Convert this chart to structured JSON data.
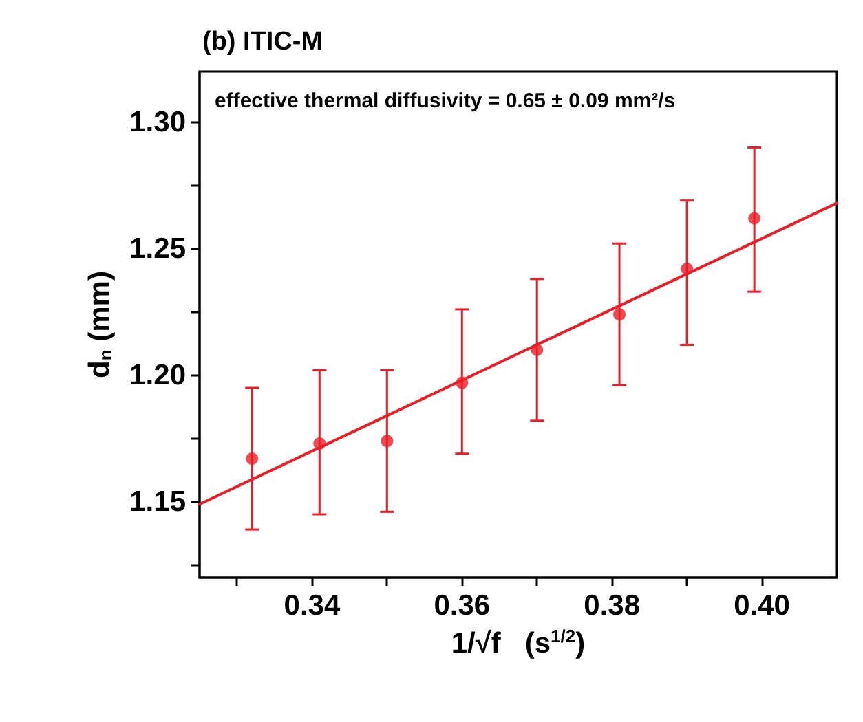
{
  "chart_data": {
    "type": "scatter",
    "title": "(b) ITIC-M",
    "xlabel": "1/√f   (s$^{1/2}$)",
    "ylabel": "d$_{n}$ (mm)",
    "annotations": [
      "effective thermal diffusivity = 0.65 ± 0.09 mm²/s"
    ],
    "xlim": [
      0.325,
      0.41
    ],
    "ylim": [
      1.12,
      1.32
    ],
    "xticks": [
      {
        "value": 0.33,
        "label": null
      },
      {
        "value": 0.34,
        "label": "0.34"
      },
      {
        "value": 0.35,
        "label": null
      },
      {
        "value": 0.36,
        "label": "0.36"
      },
      {
        "value": 0.37,
        "label": null
      },
      {
        "value": 0.38,
        "label": "0.38"
      },
      {
        "value": 0.39,
        "label": null
      },
      {
        "value": 0.4,
        "label": "0.40"
      }
    ],
    "yticks": [
      {
        "value": 1.125,
        "label": null
      },
      {
        "value": 1.15,
        "label": "1.15"
      },
      {
        "value": 1.175,
        "label": null
      },
      {
        "value": 1.2,
        "label": "1.20"
      },
      {
        "value": 1.225,
        "label": null
      },
      {
        "value": 1.25,
        "label": "1.25"
      },
      {
        "value": 1.275,
        "label": null
      },
      {
        "value": 1.3,
        "label": "1.30"
      }
    ],
    "grid": false,
    "series": [
      {
        "color": "#ee1c25",
        "marker": "circle",
        "x": [
          0.332,
          0.341,
          0.35,
          0.36,
          0.37,
          0.381,
          0.39,
          0.399
        ],
        "values": [
          1.167,
          1.173,
          1.174,
          1.197,
          1.21,
          1.224,
          1.242,
          1.262
        ],
        "errors": [
          [
            1.139,
            1.195
          ],
          [
            1.145,
            1.202
          ],
          [
            1.146,
            1.202
          ],
          [
            1.169,
            1.226
          ],
          [
            1.182,
            1.238
          ],
          [
            1.196,
            1.252
          ],
          [
            1.212,
            1.269
          ],
          [
            1.233,
            1.29
          ]
        ]
      },
      {
        "type": "line",
        "color": "#ee1c25",
        "line_style": "solid",
        "x": [
          0.325,
          0.41
        ],
        "values": [
          1.149,
          1.268
        ]
      }
    ]
  }
}
